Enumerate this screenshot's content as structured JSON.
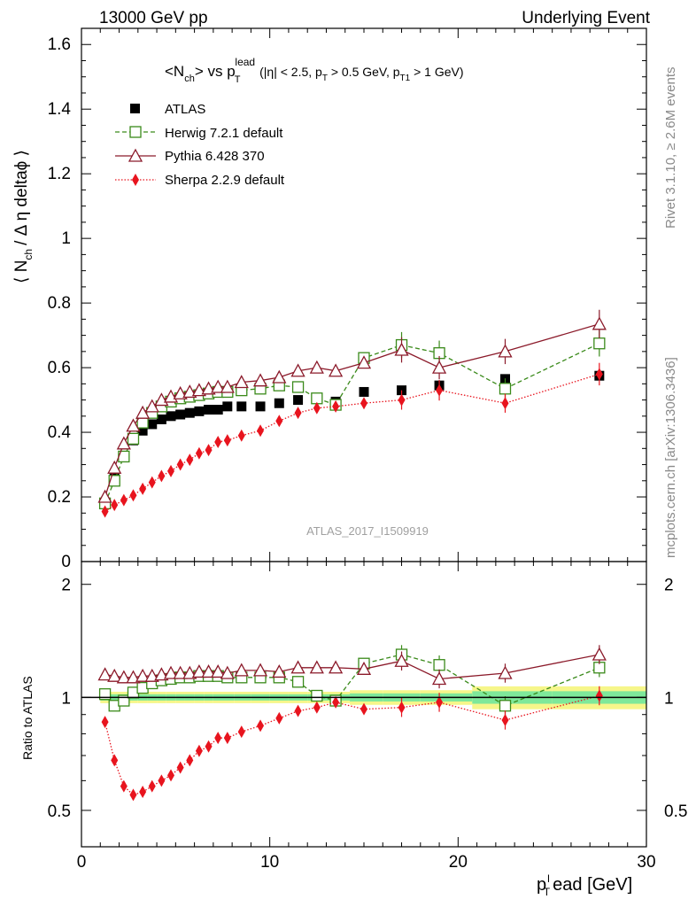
{
  "header": {
    "left": "13000 GeV pp",
    "right": "Underlying Event"
  },
  "title": {
    "text": "<N",
    "sub1": "ch",
    "mid": "> vs p",
    "sub2": "T",
    "sup": "lead",
    "cuts_a": "(|η| < 2.5, p",
    "cuts_sub1": "T",
    "cuts_b": " > 0.5 GeV, p",
    "cuts_sub2": "T1",
    "cuts_c": " > 1 GeV)"
  },
  "ylabel_main": "⟨ N",
  "ylabel_main_sub": "ch",
  "ylabel_main_rest": "/ Δ η deltaϕ ⟩",
  "ylabel_ratio": "Ratio to ATLAS",
  "xlabel": "ead [GeV]",
  "xlabel_prefix": "p",
  "xlabel_sup": "l",
  "xlabel_sub": "T",
  "side_rivet": "Rivet 3.1.10, ≥ 2.6M events",
  "side_mcplots": "mcplots.cern.ch [arXiv:1306.3436]",
  "analysis_id": "ATLAS_2017_I1509919",
  "colors": {
    "atlas": "#000000",
    "herwig": "#3a8a1a",
    "pythia": "#8b1a2a",
    "sherpa": "#e8141e",
    "band_yellow": "#f6f68a",
    "band_green": "#7ee89a"
  },
  "chart_data": {
    "type": "scatter",
    "x": [
      1.25,
      1.75,
      2.25,
      2.75,
      3.25,
      3.75,
      4.25,
      4.75,
      5.25,
      5.75,
      6.25,
      6.75,
      7.25,
      7.75,
      8.5,
      9.5,
      10.5,
      11.5,
      12.5,
      13.5,
      15,
      17,
      19,
      22.5,
      27.5
    ],
    "xlim": [
      0,
      30
    ],
    "main_ylim": [
      0,
      1.65
    ],
    "ratio_ylim": [
      0.4,
      2.3
    ],
    "x_ticks": [
      "0",
      "10",
      "20",
      "30"
    ],
    "main_y_ticks": [
      "0",
      "0.2",
      "0.4",
      "0.6",
      "0.8",
      "1",
      "1.2",
      "1.4",
      "1.6"
    ],
    "ratio_y_ticks": [
      "0.5",
      "1",
      "2"
    ],
    "series": [
      {
        "name": "ATLAS",
        "marker": "filled-square",
        "values": [
          0.18,
          0.26,
          0.325,
          0.375,
          0.405,
          0.425,
          0.44,
          0.45,
          0.455,
          0.46,
          0.465,
          0.47,
          0.47,
          0.48,
          0.48,
          0.48,
          0.49,
          0.5,
          0.505,
          0.495,
          0.525,
          0.53,
          0.545,
          0.565,
          0.575
        ],
        "ratio": [
          1,
          1,
          1,
          1,
          1,
          1,
          1,
          1,
          1,
          1,
          1,
          1,
          1,
          1,
          1,
          1,
          1,
          1,
          1,
          1,
          1,
          1,
          1,
          1,
          1
        ]
      },
      {
        "name": "Herwig 7.2.1 default",
        "marker": "open-square",
        "line": "dashed",
        "values": [
          0.18,
          0.25,
          0.325,
          0.38,
          0.43,
          0.46,
          0.48,
          0.495,
          0.505,
          0.51,
          0.515,
          0.52,
          0.525,
          0.525,
          0.53,
          0.535,
          0.545,
          0.54,
          0.505,
          0.485,
          0.63,
          0.67,
          0.645,
          0.535,
          0.675
        ],
        "ratio": [
          1.02,
          0.95,
          0.98,
          1.03,
          1.06,
          1.09,
          1.11,
          1.12,
          1.13,
          1.13,
          1.14,
          1.14,
          1.14,
          1.13,
          1.13,
          1.13,
          1.13,
          1.1,
          1.01,
          0.98,
          1.23,
          1.3,
          1.22,
          0.95,
          1.2
        ]
      },
      {
        "name": "Pythia 6.428 370",
        "marker": "open-triangle",
        "line": "solid",
        "values": [
          0.2,
          0.29,
          0.365,
          0.42,
          0.46,
          0.48,
          0.5,
          0.51,
          0.52,
          0.525,
          0.53,
          0.535,
          0.54,
          0.54,
          0.555,
          0.56,
          0.57,
          0.59,
          0.6,
          0.59,
          0.615,
          0.655,
          0.6,
          0.65,
          0.735
        ],
        "ratio": [
          1.15,
          1.14,
          1.13,
          1.13,
          1.14,
          1.14,
          1.15,
          1.16,
          1.16,
          1.16,
          1.17,
          1.17,
          1.17,
          1.16,
          1.18,
          1.18,
          1.17,
          1.2,
          1.2,
          1.2,
          1.19,
          1.25,
          1.12,
          1.16,
          1.3
        ]
      },
      {
        "name": "Sherpa 2.2.9 default",
        "marker": "filled-diamond",
        "line": "dotted",
        "values": [
          0.155,
          0.175,
          0.19,
          0.205,
          0.225,
          0.245,
          0.265,
          0.28,
          0.3,
          0.315,
          0.335,
          0.345,
          0.37,
          0.375,
          0.39,
          0.405,
          0.435,
          0.46,
          0.475,
          0.48,
          0.49,
          0.5,
          0.53,
          0.49,
          0.58
        ],
        "ratio": [
          0.86,
          0.68,
          0.58,
          0.55,
          0.56,
          0.58,
          0.6,
          0.62,
          0.65,
          0.68,
          0.72,
          0.74,
          0.78,
          0.78,
          0.81,
          0.84,
          0.88,
          0.92,
          0.94,
          0.97,
          0.93,
          0.94,
          0.97,
          0.87,
          1.01
        ]
      }
    ]
  }
}
